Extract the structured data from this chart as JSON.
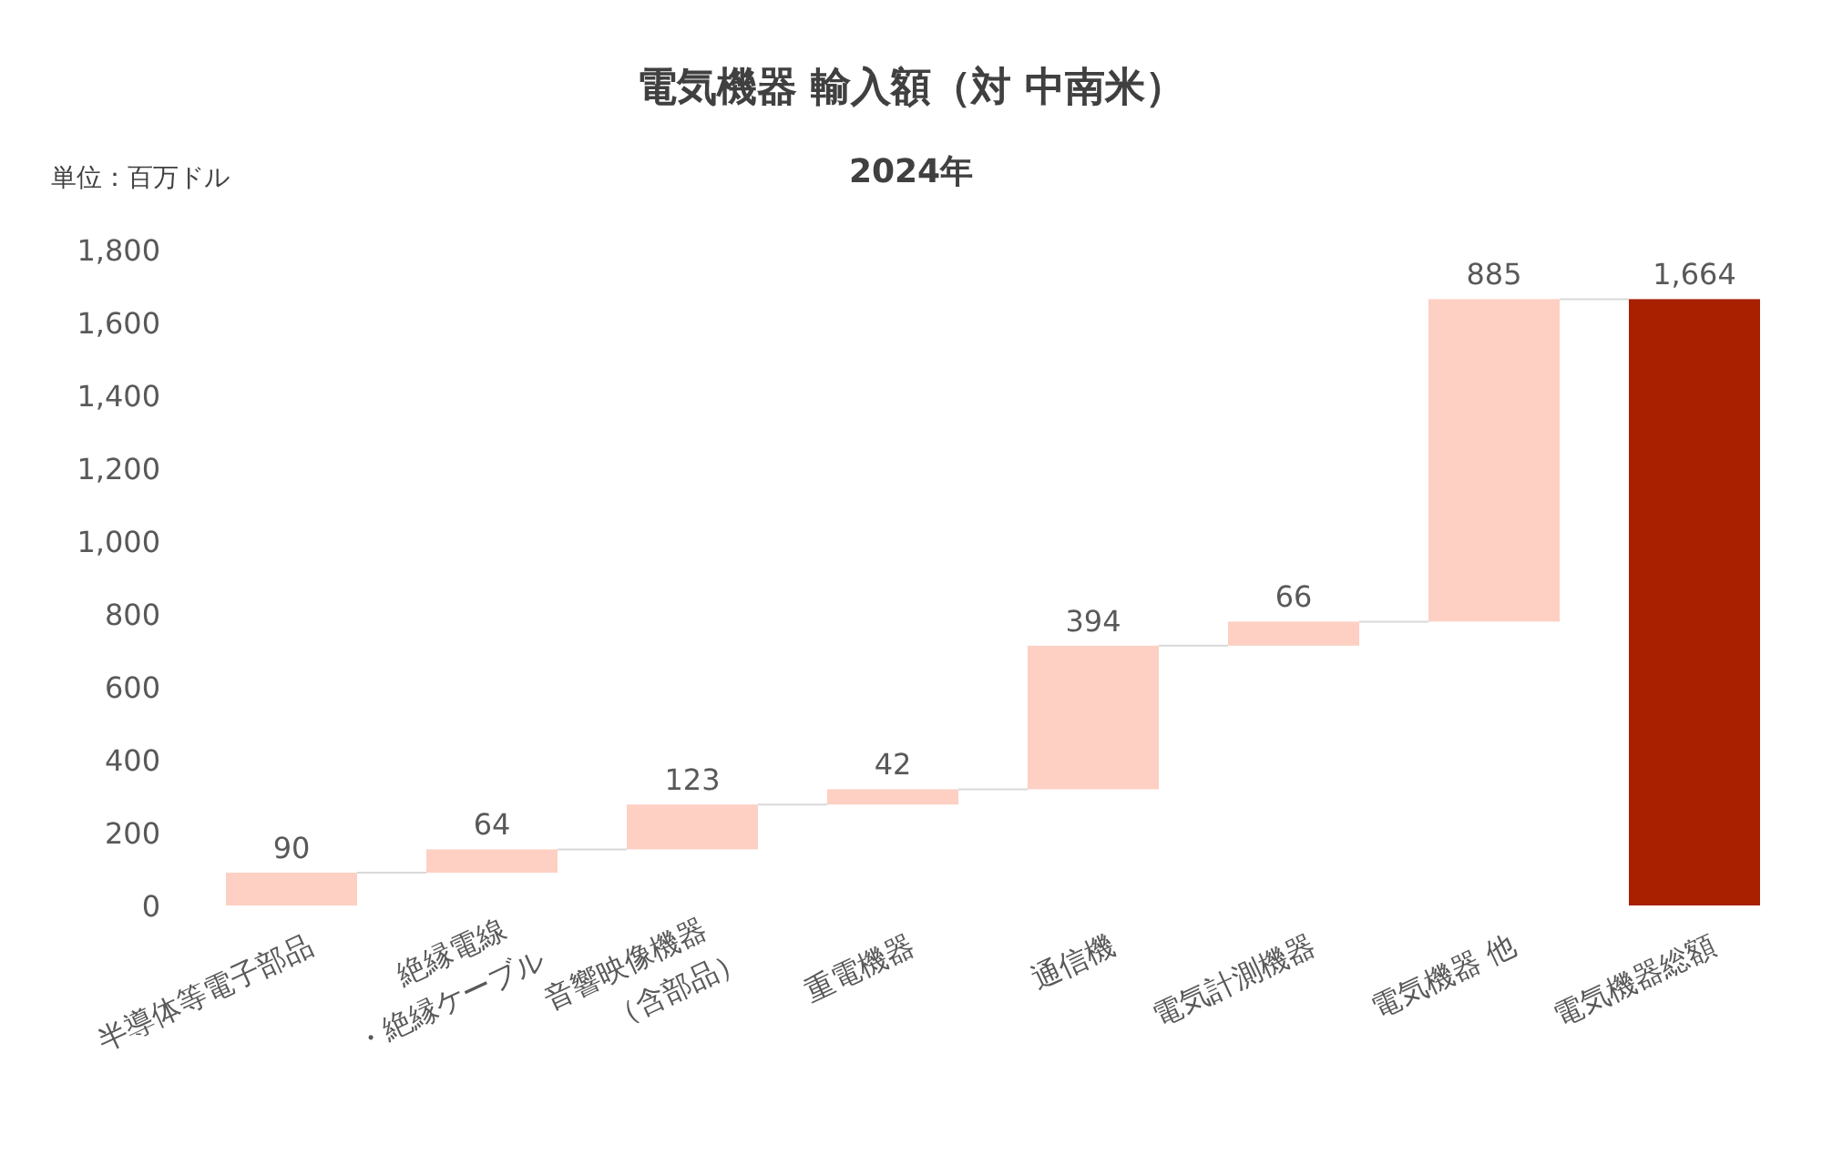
{
  "chart_data": {
    "type": "bar",
    "title": "電気機器 輸入額（対 中南米）",
    "subtitle": "2024年",
    "annotations": [
      "単位：百万ドル"
    ],
    "categories": [
      "半導体等電子部品",
      "絶縁電線\n・絶縁ケーブル",
      "音響映像機器\n（含部品）",
      "重電機器",
      "通信機",
      "電気計測機器",
      "電気機器 他",
      "電気機器総額"
    ],
    "values": [
      90,
      64,
      123,
      42,
      394,
      66,
      885,
      1664
    ],
    "base": [
      0,
      90,
      154,
      277,
      319,
      713,
      779,
      0
    ],
    "colors": [
      "#fdd0c3",
      "#fdd0c3",
      "#fdd0c3",
      "#fdd0c3",
      "#fdd0c3",
      "#fdd0c3",
      "#fdd0c3",
      "#a82000"
    ],
    "value_labels": [
      "90",
      "64",
      "123",
      "42",
      "394",
      "66",
      "885",
      "1,664"
    ],
    "ylim": [
      0,
      1800
    ],
    "yticks": [
      0,
      200,
      400,
      600,
      800,
      {
        "value": 1000,
        "label": "1,000"
      },
      {
        "value": 1200,
        "label": "1,200"
      },
      {
        "value": 1400,
        "label": "1,400"
      },
      {
        "value": 1600,
        "label": "1,600"
      },
      {
        "value": 1800,
        "label": "1,800"
      }
    ]
  }
}
